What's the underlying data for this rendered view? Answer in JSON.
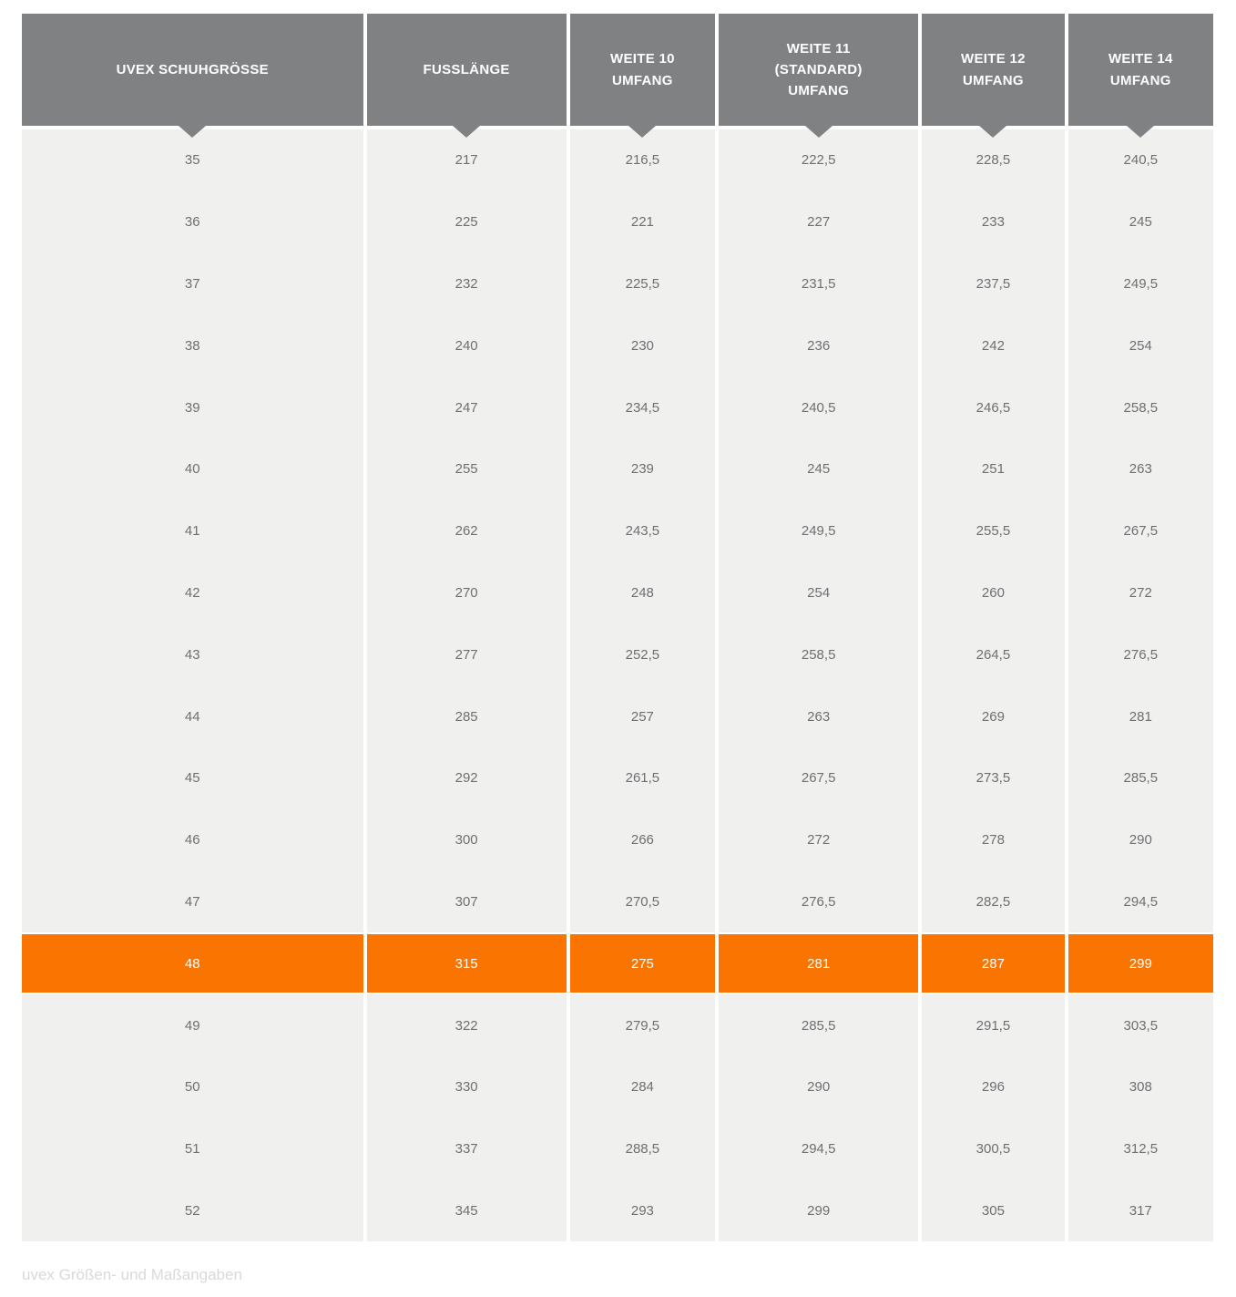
{
  "chart_data": {
    "type": "table",
    "columns": [
      {
        "label_lines": [
          "UVEX SCHUHGRÖSSE"
        ]
      },
      {
        "label_lines": [
          "FUSSLÄNGE"
        ]
      },
      {
        "label_lines": [
          "WEITE 10",
          "UMFANG"
        ]
      },
      {
        "label_lines": [
          "WEITE 11",
          "(STANDARD)",
          "UMFANG"
        ]
      },
      {
        "label_lines": [
          "WEITE 12",
          "UMFANG"
        ]
      },
      {
        "label_lines": [
          "WEITE 14",
          "UMFANG"
        ]
      }
    ],
    "rows": [
      {
        "highlighted": false,
        "cells": [
          "35",
          "217",
          "216,5",
          "222,5",
          "228,5",
          "240,5"
        ]
      },
      {
        "highlighted": false,
        "cells": [
          "36",
          "225",
          "221",
          "227",
          "233",
          "245"
        ]
      },
      {
        "highlighted": false,
        "cells": [
          "37",
          "232",
          "225,5",
          "231,5",
          "237,5",
          "249,5"
        ]
      },
      {
        "highlighted": false,
        "cells": [
          "38",
          "240",
          "230",
          "236",
          "242",
          "254"
        ]
      },
      {
        "highlighted": false,
        "cells": [
          "39",
          "247",
          "234,5",
          "240,5",
          "246,5",
          "258,5"
        ]
      },
      {
        "highlighted": false,
        "cells": [
          "40",
          "255",
          "239",
          "245",
          "251",
          "263"
        ]
      },
      {
        "highlighted": false,
        "cells": [
          "41",
          "262",
          "243,5",
          "249,5",
          "255,5",
          "267,5"
        ]
      },
      {
        "highlighted": false,
        "cells": [
          "42",
          "270",
          "248",
          "254",
          "260",
          "272"
        ]
      },
      {
        "highlighted": false,
        "cells": [
          "43",
          "277",
          "252,5",
          "258,5",
          "264,5",
          "276,5"
        ]
      },
      {
        "highlighted": false,
        "cells": [
          "44",
          "285",
          "257",
          "263",
          "269",
          "281"
        ]
      },
      {
        "highlighted": false,
        "cells": [
          "45",
          "292",
          "261,5",
          "267,5",
          "273,5",
          "285,5"
        ]
      },
      {
        "highlighted": false,
        "cells": [
          "46",
          "300",
          "266",
          "272",
          "278",
          "290"
        ]
      },
      {
        "highlighted": false,
        "cells": [
          "47",
          "307",
          "270,5",
          "276,5",
          "282,5",
          "294,5"
        ]
      },
      {
        "highlighted": true,
        "cells": [
          "48",
          "315",
          "275",
          "281",
          "287",
          "299"
        ]
      },
      {
        "highlighted": false,
        "cells": [
          "49",
          "322",
          "279,5",
          "285,5",
          "291,5",
          "303,5"
        ]
      },
      {
        "highlighted": false,
        "cells": [
          "50",
          "330",
          "284",
          "290",
          "296",
          "308"
        ]
      },
      {
        "highlighted": false,
        "cells": [
          "51",
          "337",
          "288,5",
          "294,5",
          "300,5",
          "312,5"
        ]
      },
      {
        "highlighted": false,
        "cells": [
          "52",
          "345",
          "293",
          "299",
          "305",
          "317"
        ]
      }
    ],
    "highlighted_row_size": "48",
    "caption": "uvex Größen- und Maßangaben"
  },
  "colors": {
    "header_bg": "#808183",
    "row_bg": "#f0f0ef",
    "highlight_bg": "#f97400",
    "header_text": "#ffffff",
    "body_text": "#6e6f71",
    "caption_text": "#d9d9d9"
  }
}
